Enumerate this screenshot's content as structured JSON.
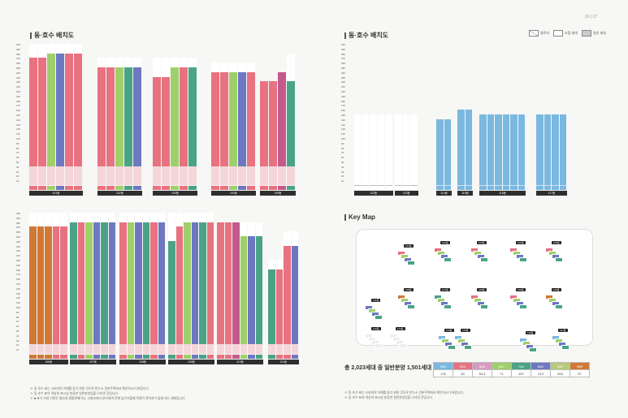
{
  "page": {
    "number": "26 | 27"
  },
  "left": {
    "title": "동·호수 배치도",
    "top_group": {
      "buildings": [
        "101동",
        "102동",
        "103동",
        "104동",
        "105동"
      ]
    },
    "bottom_group": {
      "buildings": [
        "106동",
        "107동",
        "108동",
        "109동",
        "110동",
        "111동"
      ]
    },
    "notes": [
      "※ 동·호수 표는 소비자의 이해를 돕기 위한 것으로 반드시 견본주택에서 확인하시기 바랍니다.",
      "※ 동·호수 표의 색상의 표시상 분류만 일반분양임을 나타낸 것입니다.",
      "※ ■ 표기 지대 기반은 열사대 필름현재이니, 고층부에서 분리되며 전체 높이가을때 적정이 적어지기 쉽게 되는 세대입니다."
    ]
  },
  "right": {
    "title": "동·호수 배치도",
    "legend": [
      {
        "label": "필로티",
        "swatch": "x"
      },
      {
        "label": "조합 세대",
        "swatch": "w"
      },
      {
        "label": "일반 세대",
        "swatch": "g"
      }
    ],
    "buildings": [
      "112동",
      "113동",
      "114동",
      "115동",
      "116동",
      "117동"
    ],
    "keymap_title": "Key Map",
    "keymap_labels": [
      "101동",
      "102동",
      "103동",
      "104동",
      "105동",
      "106동",
      "107동",
      "108동",
      "109동",
      "110동",
      "111동",
      "112동",
      "113동",
      "114동",
      "115동",
      "116동",
      "117동"
    ],
    "summary": "총 2,023세대 중 일반분양 1,501세대",
    "types": {
      "labels": [
        "59A",
        "84A",
        "84B",
        "84C",
        "74A",
        "84D",
        "84E",
        "59B"
      ],
      "values": [
        "176",
        "30",
        "54.3",
        "71",
        "157",
        "213",
        "254",
        "57"
      ],
      "colors": [
        "#7ab8e0",
        "#e8727f",
        "#d79bc0",
        "#9fcf6a",
        "#4aa386",
        "#6d78c0",
        "#b7c97a",
        "#d07836"
      ]
    },
    "notes": [
      "※ 동·호수 표는 소비자의 이해를 돕기 위한 것으로 반드시 견본주택에서 확인하시기 바랍니다.",
      "※ 동·호수 표의 색상의 표시상 분류만 일반분양임을 나타낸 것입니다."
    ]
  },
  "colors": {
    "pink": "#e8727f",
    "green": "#9fcf6a",
    "purple": "#6d78c0",
    "teal": "#4aa386",
    "mauve": "#c45a8c",
    "orange": "#d07836",
    "blue": "#7ab8e0",
    "white": "#ffffff",
    "dark": "#2e2e2e"
  }
}
